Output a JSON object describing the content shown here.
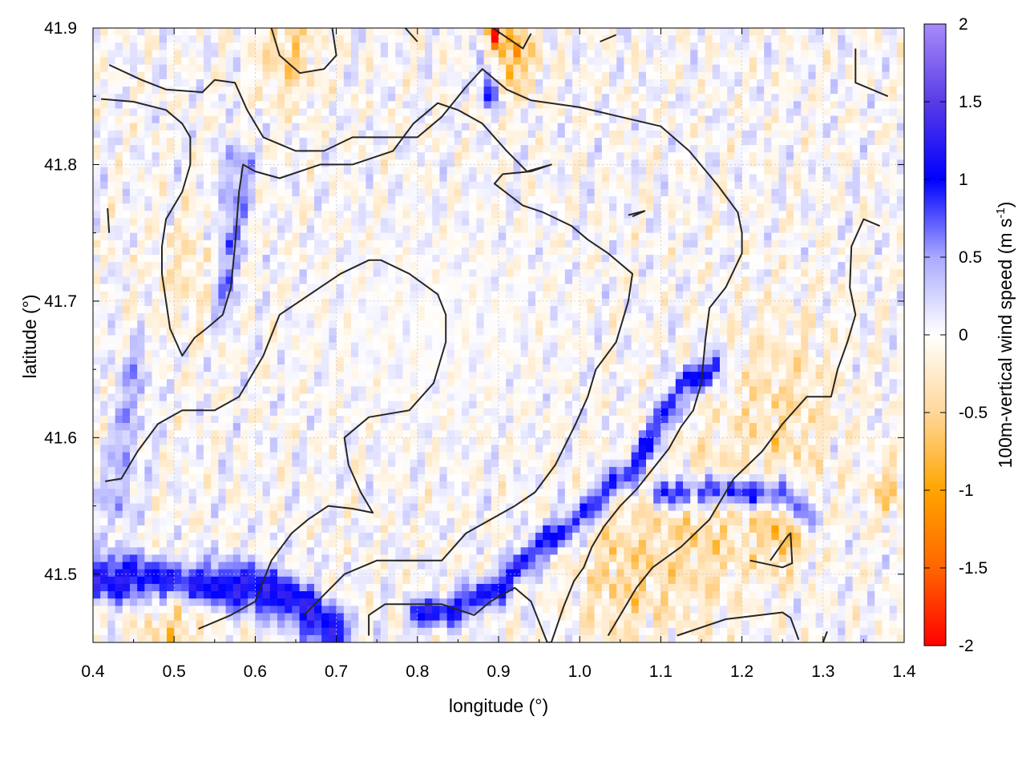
{
  "chart_data": {
    "type": "heatmap",
    "title": "",
    "xlabel": "longitude (°)",
    "ylabel": "latitude (°)",
    "xlim": [
      0.4,
      1.4
    ],
    "ylim": [
      41.45,
      41.9
    ],
    "x_ticks": [
      {
        "value": 0.4,
        "label": "0.4"
      },
      {
        "value": 0.5,
        "label": "0.5"
      },
      {
        "value": 0.6,
        "label": "0.6"
      },
      {
        "value": 0.7,
        "label": "0.7"
      },
      {
        "value": 0.8,
        "label": "0.8"
      },
      {
        "value": 0.9,
        "label": "0.9"
      },
      {
        "value": 1.0,
        "label": "1.0"
      },
      {
        "value": 1.1,
        "label": "1.1"
      },
      {
        "value": 1.2,
        "label": "1.2"
      },
      {
        "value": 1.3,
        "label": "1.3"
      },
      {
        "value": 1.4,
        "label": "1.4"
      }
    ],
    "y_ticks": [
      {
        "value": 41.5,
        "label": "41.5"
      },
      {
        "value": 41.6,
        "label": "41.6"
      },
      {
        "value": 41.7,
        "label": "41.7"
      },
      {
        "value": 41.8,
        "label": "41.8"
      },
      {
        "value": 41.9,
        "label": "41.9"
      }
    ],
    "grid": true,
    "colorbar": {
      "label": "100m-vertical wind speed (m s",
      "label_sup": "-1",
      "label_close": ")",
      "range": [
        -2,
        2
      ],
      "ticks": [
        {
          "value": 2,
          "label": "2"
        },
        {
          "value": 1.5,
          "label": "1.5"
        },
        {
          "value": 1,
          "label": "1"
        },
        {
          "value": 0.5,
          "label": "0.5"
        },
        {
          "value": 0,
          "label": "0"
        },
        {
          "value": -0.5,
          "label": "-0.5"
        },
        {
          "value": -1,
          "label": "-1"
        },
        {
          "value": -1.5,
          "label": "-1.5"
        },
        {
          "value": -2,
          "label": "-2"
        }
      ],
      "colors": [
        {
          "value": -2,
          "color": "#ff0000"
        },
        {
          "value": -1.5,
          "color": "#ff6600"
        },
        {
          "value": -1,
          "color": "#ffa500"
        },
        {
          "value": -0.5,
          "color": "#ffd79a"
        },
        {
          "value": 0,
          "color": "#ffffff"
        },
        {
          "value": 0.5,
          "color": "#a9a9ff"
        },
        {
          "value": 1,
          "color": "#0000ff"
        },
        {
          "value": 1.5,
          "color": "#5a3ce6"
        },
        {
          "value": 2,
          "color": "#a78bfa"
        }
      ]
    },
    "field_features": [
      {
        "kind": "ridge",
        "value": 1.2,
        "width": 0.012,
        "points": [
          [
            0.4,
            41.497
          ],
          [
            0.45,
            41.497
          ],
          [
            0.52,
            41.493
          ],
          [
            0.6,
            41.49
          ],
          [
            0.65,
            41.48
          ],
          [
            0.7,
            41.455
          ]
        ]
      },
      {
        "kind": "ridge",
        "value": 1.0,
        "width": 0.008,
        "points": [
          [
            0.8,
            41.47
          ],
          [
            0.85,
            41.475
          ],
          [
            0.9,
            41.49
          ],
          [
            0.95,
            41.52
          ],
          [
            1.0,
            41.54
          ],
          [
            1.03,
            41.56
          ],
          [
            1.07,
            41.58
          ],
          [
            1.1,
            41.61
          ],
          [
            1.13,
            41.64
          ],
          [
            1.17,
            41.652
          ]
        ]
      },
      {
        "kind": "ridge",
        "value": 1.1,
        "width": 0.008,
        "points": [
          [
            1.1,
            41.56
          ],
          [
            1.15,
            41.56
          ],
          [
            1.2,
            41.56
          ],
          [
            1.25,
            41.56
          ],
          [
            1.28,
            41.545
          ]
        ]
      },
      {
        "kind": "ridge",
        "value": 0.9,
        "width": 0.007,
        "points": [
          [
            0.88,
            41.9
          ],
          [
            0.885,
            41.87
          ],
          [
            0.89,
            41.85
          ]
        ]
      },
      {
        "kind": "ridge",
        "value": 0.6,
        "width": 0.012,
        "points": [
          [
            0.58,
            41.8
          ],
          [
            0.57,
            41.75
          ],
          [
            0.56,
            41.7
          ]
        ]
      },
      {
        "kind": "ridge",
        "value": 0.4,
        "width": 0.015,
        "points": [
          [
            0.45,
            41.65
          ],
          [
            0.44,
            41.6
          ],
          [
            0.43,
            41.55
          ]
        ]
      },
      {
        "kind": "blob",
        "value": -1.8,
        "center": [
          0.89,
          41.895
        ],
        "radius": 0.012
      },
      {
        "kind": "blob",
        "value": -1.0,
        "center": [
          0.92,
          41.88
        ],
        "radius": 0.02
      },
      {
        "kind": "blob",
        "value": -0.7,
        "center": [
          0.64,
          41.88
        ],
        "radius": 0.025
      },
      {
        "kind": "blob",
        "value": -0.6,
        "center": [
          1.15,
          41.53
        ],
        "radius": 0.045
      },
      {
        "kind": "blob",
        "value": -0.6,
        "center": [
          1.05,
          41.5
        ],
        "radius": 0.04
      },
      {
        "kind": "blob",
        "value": -0.8,
        "center": [
          1.25,
          41.53
        ],
        "radius": 0.02
      },
      {
        "kind": "blob",
        "value": -0.7,
        "center": [
          1.38,
          41.56
        ],
        "radius": 0.015
      },
      {
        "kind": "blob",
        "value": -0.7,
        "center": [
          0.5,
          41.465
        ],
        "radius": 0.03
      },
      {
        "kind": "blob",
        "value": -0.5,
        "center": [
          1.25,
          41.62
        ],
        "radius": 0.05
      },
      {
        "kind": "blob",
        "value": -0.4,
        "center": [
          0.52,
          41.72
        ],
        "radius": 0.03
      }
    ],
    "contours": [
      {
        "points": [
          [
            0.42,
            41.873
          ],
          [
            0.46,
            41.862
          ],
          [
            0.49,
            41.855
          ],
          [
            0.535,
            41.853
          ],
          [
            0.55,
            41.862
          ],
          [
            0.575,
            41.86
          ],
          [
            0.59,
            41.84
          ],
          [
            0.61,
            41.82
          ],
          [
            0.65,
            41.81
          ],
          [
            0.685,
            41.81
          ],
          [
            0.72,
            41.82
          ],
          [
            0.77,
            41.82
          ],
          [
            0.8,
            41.82
          ],
          [
            0.83,
            41.835
          ],
          [
            0.86,
            41.857
          ],
          [
            0.88,
            41.87
          ],
          [
            0.91,
            41.855
          ],
          [
            0.94,
            41.847
          ],
          [
            1.0,
            41.842
          ],
          [
            1.05,
            41.835
          ],
          [
            1.1,
            41.828
          ],
          [
            1.135,
            41.81
          ],
          [
            1.17,
            41.785
          ],
          [
            1.195,
            41.765
          ],
          [
            1.2,
            41.75
          ],
          [
            1.2,
            41.735
          ],
          [
            1.18,
            41.71
          ],
          [
            1.16,
            41.695
          ],
          [
            1.155,
            41.672
          ],
          [
            1.15,
            41.64
          ],
          [
            1.14,
            41.62
          ],
          [
            1.125,
            41.608
          ],
          [
            1.11,
            41.592
          ],
          [
            1.09,
            41.577
          ],
          [
            1.07,
            41.562
          ],
          [
            1.05,
            41.55
          ],
          [
            1.03,
            41.535
          ],
          [
            1.015,
            41.52
          ],
          [
            1.005,
            41.505
          ],
          [
            0.993,
            41.495
          ],
          [
            0.98,
            41.476
          ],
          [
            0.965,
            41.45
          ],
          [
            0.96,
            41.45
          ],
          [
            0.94,
            41.48
          ],
          [
            0.92,
            41.49
          ],
          [
            0.89,
            41.48
          ],
          [
            0.87,
            41.47
          ],
          [
            0.83,
            41.478
          ],
          [
            0.76,
            41.478
          ],
          [
            0.74,
            41.47
          ],
          [
            0.74,
            41.455
          ]
        ]
      },
      {
        "points": [
          [
            0.41,
            41.848
          ],
          [
            0.45,
            41.846
          ],
          [
            0.49,
            41.84
          ],
          [
            0.51,
            41.83
          ],
          [
            0.52,
            41.82
          ],
          [
            0.52,
            41.8
          ],
          [
            0.51,
            41.78
          ],
          [
            0.49,
            41.76
          ],
          [
            0.485,
            41.74
          ],
          [
            0.485,
            41.72
          ],
          [
            0.49,
            41.7
          ],
          [
            0.495,
            41.68
          ],
          [
            0.51,
            41.66
          ],
          [
            0.525,
            41.673
          ],
          [
            0.54,
            41.68
          ],
          [
            0.56,
            41.69
          ],
          [
            0.57,
            41.71
          ],
          [
            0.575,
            41.74
          ],
          [
            0.58,
            41.78
          ],
          [
            0.585,
            41.8
          ],
          [
            0.6,
            41.795
          ],
          [
            0.63,
            41.79
          ],
          [
            0.68,
            41.8
          ],
          [
            0.72,
            41.8
          ],
          [
            0.77,
            41.81
          ],
          [
            0.795,
            41.83
          ],
          [
            0.825,
            41.845
          ],
          [
            0.85,
            41.84
          ],
          [
            0.88,
            41.83
          ],
          [
            0.91,
            41.81
          ],
          [
            0.935,
            41.795
          ],
          [
            0.965,
            41.8
          ],
          [
            0.94,
            41.795
          ],
          [
            0.905,
            41.793
          ],
          [
            0.895,
            41.786
          ],
          [
            0.93,
            41.77
          ],
          [
            0.955,
            41.765
          ],
          [
            0.99,
            41.755
          ],
          [
            1.01,
            41.745
          ],
          [
            1.035,
            41.735
          ],
          [
            1.065,
            41.72
          ],
          [
            1.06,
            41.7
          ],
          [
            1.045,
            41.67
          ],
          [
            1.02,
            41.65
          ],
          [
            1.01,
            41.63
          ],
          [
            0.995,
            41.61
          ],
          [
            0.97,
            41.58
          ],
          [
            0.945,
            41.56
          ],
          [
            0.92,
            41.55
          ],
          [
            0.89,
            41.54
          ],
          [
            0.86,
            41.53
          ],
          [
            0.83,
            41.51
          ],
          [
            0.8,
            41.51
          ],
          [
            0.75,
            41.51
          ],
          [
            0.71,
            41.5
          ],
          [
            0.66,
            41.47
          ]
        ]
      },
      {
        "points": [
          [
            0.415,
            41.568
          ],
          [
            0.435,
            41.57
          ],
          [
            0.455,
            41.59
          ],
          [
            0.48,
            41.61
          ],
          [
            0.51,
            41.62
          ],
          [
            0.55,
            41.62
          ],
          [
            0.58,
            41.63
          ],
          [
            0.61,
            41.66
          ],
          [
            0.63,
            41.69
          ],
          [
            0.655,
            41.7
          ],
          [
            0.68,
            41.71
          ],
          [
            0.705,
            41.72
          ],
          [
            0.74,
            41.73
          ],
          [
            0.755,
            41.73
          ],
          [
            0.79,
            41.72
          ],
          [
            0.825,
            41.705
          ],
          [
            0.835,
            41.69
          ],
          [
            0.835,
            41.67
          ],
          [
            0.82,
            41.64
          ],
          [
            0.79,
            41.62
          ],
          [
            0.74,
            41.615
          ],
          [
            0.71,
            41.6
          ],
          [
            0.715,
            41.58
          ],
          [
            0.73,
            41.56
          ],
          [
            0.745,
            41.545
          ],
          [
            0.72,
            41.548
          ],
          [
            0.69,
            41.55
          ],
          [
            0.665,
            41.54
          ],
          [
            0.645,
            41.53
          ],
          [
            0.62,
            41.51
          ],
          [
            0.6,
            41.48
          ],
          [
            0.57,
            41.47
          ],
          [
            0.53,
            41.46
          ]
        ]
      },
      {
        "points": [
          [
            0.62,
            41.9
          ],
          [
            0.63,
            41.88
          ],
          [
            0.655,
            41.867
          ],
          [
            0.685,
            41.87
          ],
          [
            0.7,
            41.88
          ],
          [
            0.695,
            41.9
          ]
        ]
      },
      {
        "points": [
          [
            0.785,
            41.9
          ],
          [
            0.8,
            41.89
          ]
        ]
      },
      {
        "points": [
          [
            0.893,
            41.9
          ],
          [
            0.93,
            41.885
          ],
          [
            0.94,
            41.896
          ]
        ]
      },
      {
        "points": [
          [
            1.025,
            41.89
          ],
          [
            1.045,
            41.895
          ]
        ]
      },
      {
        "points": [
          [
            1.34,
            41.885
          ],
          [
            1.34,
            41.86
          ],
          [
            1.38,
            41.85
          ]
        ]
      },
      {
        "points": [
          [
            0.418,
            41.768
          ],
          [
            0.42,
            41.75
          ]
        ]
      },
      {
        "points": [
          [
            1.06,
            41.763
          ],
          [
            1.08,
            41.766
          ],
          [
            1.065,
            41.762
          ]
        ]
      },
      {
        "points": [
          [
            1.37,
            41.755
          ],
          [
            1.35,
            41.76
          ],
          [
            1.335,
            41.74
          ],
          [
            1.333,
            41.71
          ],
          [
            1.34,
            41.69
          ],
          [
            1.33,
            41.67
          ],
          [
            1.318,
            41.65
          ],
          [
            1.31,
            41.63
          ],
          [
            1.28,
            41.63
          ],
          [
            1.25,
            41.61
          ],
          [
            1.225,
            41.59
          ],
          [
            1.19,
            41.57
          ],
          [
            1.16,
            41.54
          ],
          [
            1.125,
            41.52
          ],
          [
            1.09,
            41.505
          ],
          [
            1.07,
            41.49
          ],
          [
            1.05,
            41.47
          ],
          [
            1.035,
            41.455
          ]
        ]
      },
      {
        "points": [
          [
            1.21,
            41.51
          ],
          [
            1.25,
            41.505
          ],
          [
            1.262,
            41.508
          ],
          [
            1.26,
            41.53
          ],
          [
            1.255,
            41.527
          ],
          [
            1.235,
            41.51
          ]
        ]
      },
      {
        "points": [
          [
            1.12,
            41.455
          ],
          [
            1.18,
            41.467
          ],
          [
            1.25,
            41.472
          ],
          [
            1.26,
            41.468
          ],
          [
            1.27,
            41.452
          ]
        ]
      },
      {
        "points": [
          [
            1.3,
            41.45
          ],
          [
            1.305,
            41.458
          ]
        ]
      }
    ]
  }
}
